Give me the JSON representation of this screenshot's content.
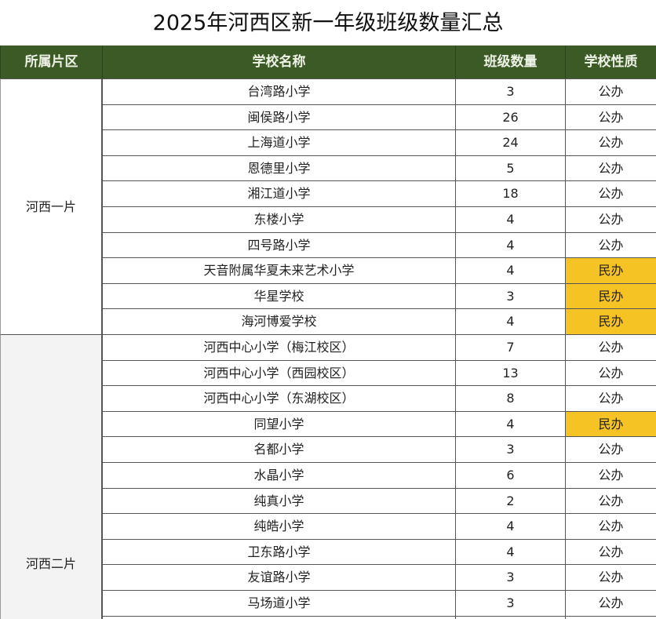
{
  "title": "2025年河西区新一年级班级数量汇总",
  "headers": {
    "region": "所属片区",
    "school": "学校名称",
    "classes": "班级数量",
    "type": "学校性质"
  },
  "colors": {
    "header_bg": "#3c5a26",
    "private_highlight": "#f6c324",
    "group2_bg": "#f3f3f3"
  },
  "groups": [
    {
      "region": "河西一片",
      "rows": [
        {
          "school": "台湾路小学",
          "classes": "3",
          "type": "公办"
        },
        {
          "school": "闽侯路小学",
          "classes": "26",
          "type": "公办"
        },
        {
          "school": "上海道小学",
          "classes": "24",
          "type": "公办"
        },
        {
          "school": "恩德里小学",
          "classes": "5",
          "type": "公办"
        },
        {
          "school": "湘江道小学",
          "classes": "18",
          "type": "公办"
        },
        {
          "school": "东楼小学",
          "classes": "4",
          "type": "公办"
        },
        {
          "school": "四号路小学",
          "classes": "4",
          "type": "公办"
        },
        {
          "school": "天音附属华夏未来艺术小学",
          "classes": "4",
          "type": "民办"
        },
        {
          "school": "华星学校",
          "classes": "3",
          "type": "民办"
        },
        {
          "school": "海河博爱学校",
          "classes": "4",
          "type": "民办"
        }
      ]
    },
    {
      "region": "河西二片",
      "rows": [
        {
          "school": "河西中心小学（梅江校区）",
          "classes": "7",
          "type": "公办"
        },
        {
          "school": "河西中心小学（西园校区）",
          "classes": "13",
          "type": "公办"
        },
        {
          "school": "河西中心小学（东湖校区）",
          "classes": "8",
          "type": "公办"
        },
        {
          "school": "同望小学",
          "classes": "4",
          "type": "民办"
        },
        {
          "school": "名都小学",
          "classes": "3",
          "type": "公办"
        },
        {
          "school": "水晶小学",
          "classes": "6",
          "type": "公办"
        },
        {
          "school": "纯真小学",
          "classes": "2",
          "type": "公办"
        },
        {
          "school": "纯皓小学",
          "classes": "4",
          "type": "公办"
        },
        {
          "school": "卫东路小学",
          "classes": "4",
          "type": "公办"
        },
        {
          "school": "友谊路小学",
          "classes": "3",
          "type": "公办"
        },
        {
          "school": "马场道小学",
          "classes": "3",
          "type": "公办"
        }
      ]
    }
  ]
}
